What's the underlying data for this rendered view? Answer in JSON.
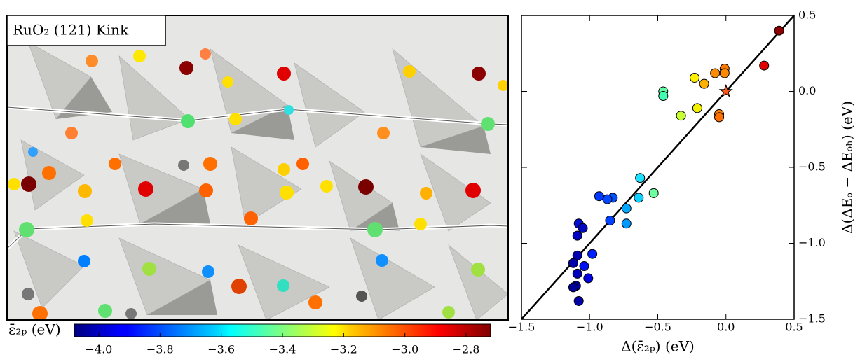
{
  "panel_label": "RuO₂ (121) Kink",
  "colorbar": {
    "label": "ε̄₂ₚ (eV)",
    "colormap": "jet",
    "clim": [
      -4.08,
      -2.72
    ],
    "ticks": [
      {
        "value": -4.0,
        "label": "−4.0"
      },
      {
        "value": -3.8,
        "label": "−3.8"
      },
      {
        "value": -3.6,
        "label": "−3.6"
      },
      {
        "value": -3.4,
        "label": "−3.4"
      },
      {
        "value": -3.2,
        "label": "−3.2"
      },
      {
        "value": -3.0,
        "label": "−3.0"
      },
      {
        "value": -2.8,
        "label": "−2.8"
      }
    ]
  },
  "chart_data": {
    "type": "scatter",
    "xlabel": "Δ(ε̄₂ₚ) (eV)",
    "ylabel": "Δ(ΔEₒ − ΔEₒₕ) (eV)",
    "x": [
      0.39,
      0.28,
      -0.01,
      -0.01,
      -0.08,
      -0.16,
      -0.23,
      -0.21,
      -0.33,
      -0.05,
      -0.05,
      -0.46,
      -0.46,
      -0.63,
      -0.53,
      -0.64,
      -0.73,
      -0.73,
      -0.85,
      -0.83,
      -0.87,
      -0.93,
      -1.08,
      -1.05,
      -1.09,
      -0.98,
      -1.09,
      -1.12,
      -1.04,
      -1.09,
      -1.01,
      -1.1,
      -1.12,
      -1.08
    ],
    "y": [
      0.4,
      0.17,
      0.15,
      0.12,
      0.12,
      0.05,
      0.09,
      -0.11,
      -0.16,
      -0.15,
      -0.17,
      0.0,
      -0.03,
      -0.57,
      -0.67,
      -0.7,
      -0.77,
      -0.87,
      -0.85,
      -0.7,
      -0.71,
      -0.69,
      -0.87,
      -0.9,
      -0.95,
      -1.07,
      -1.08,
      -1.13,
      -1.15,
      -1.2,
      -1.23,
      -1.28,
      -1.29,
      -1.38
    ],
    "colors": [
      "#8b0000",
      "#e00000",
      "#ff7a00",
      "#ff8a00",
      "#ff8c00",
      "#ffb000",
      "#fff000",
      "#f0f000",
      "#c8ff30",
      "#ff8000",
      "#ff7000",
      "#60ffa0",
      "#40ffb0",
      "#20e0ff",
      "#70ffa0",
      "#10d0ff",
      "#00a8ff",
      "#0098ff",
      "#0040ff",
      "#0050ff",
      "#0048ff",
      "#0038ff",
      "#0010d0",
      "#0008c0",
      "#0000c0",
      "#0020ff",
      "#0000b0",
      "#0000a8",
      "#0010f0",
      "#0000b8",
      "#0000e0",
      "#0000a0",
      "#000098",
      "#0000a8"
    ],
    "reference_point": {
      "x": 0.0,
      "y": 0.0,
      "color": "#ff5a1a"
    },
    "diagonal": {
      "x": [
        -1.5,
        0.5
      ],
      "y": [
        -1.5,
        0.5
      ]
    },
    "xlim": [
      -1.5,
      0.5
    ],
    "ylim": [
      -1.5,
      0.5
    ],
    "xticks": [
      {
        "value": -1.5,
        "label": "−1.5"
      },
      {
        "value": -1.0,
        "label": "−1.0"
      },
      {
        "value": -0.5,
        "label": "−0.5"
      },
      {
        "value": 0.0,
        "label": "0.0"
      },
      0.5
    ],
    "yticks": [
      0.5,
      {
        "value": 0.0,
        "label": "0.0"
      },
      {
        "value": -0.5,
        "label": "−0.5"
      },
      {
        "value": -1.0,
        "label": "−1.0"
      },
      {
        "value": -1.5,
        "label": "−1.5"
      }
    ]
  }
}
